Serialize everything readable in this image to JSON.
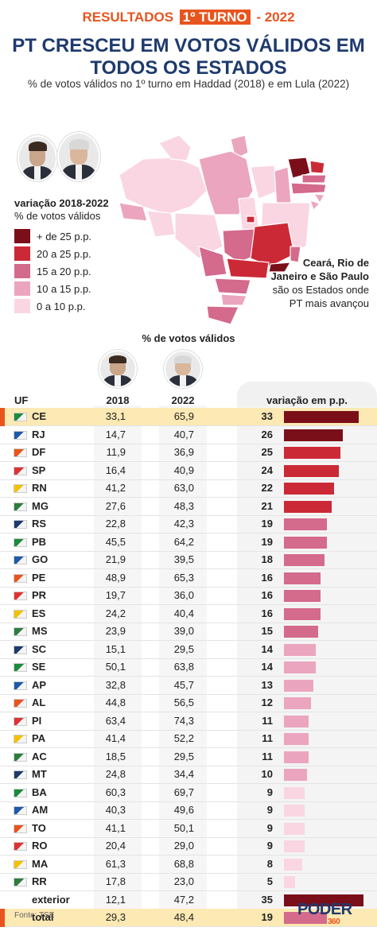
{
  "header": {
    "kicker_left": "RESULTADOS",
    "kicker_box": "1º TURNO",
    "kicker_right": "- 2022",
    "title_line1": "PT CRESCEU EM VOTOS VÁLIDOS EM",
    "title_line2": "TODOS OS ESTADOS",
    "subtitle": "% de votos válidos no 1º turno em Haddad (2018) e em Lula (2022)"
  },
  "legend": {
    "title": "variação 2018-2022",
    "subtitle": "% de votos válidos",
    "items": [
      {
        "label": "+ de 25 p.p.",
        "color": "#7a0f1a"
      },
      {
        "label": "20 a 25 p.p.",
        "color": "#cc2936"
      },
      {
        "label": "15 a 20 p.p.",
        "color": "#d46a8c"
      },
      {
        "label": "10 a 15 p.p.",
        "color": "#eba5bf"
      },
      {
        "label": "0 a 10 p.p.",
        "color": "#f9d6e2"
      }
    ]
  },
  "note": {
    "bold": "Ceará, Rio de Janeiro e São Paulo",
    "text": " são os Estados onde PT mais avançou"
  },
  "table": {
    "caption": "% de votos válidos",
    "col_uf": "UF",
    "col_2018": "2018",
    "col_2022": "2022",
    "col_var": "variação em p.p."
  },
  "footer": {
    "source": "Fonte: TSE",
    "logo": "PODER",
    "logo_num": "360"
  },
  "chart_data": {
    "type": "table",
    "columns": [
      "UF",
      "2018",
      "2022",
      "variação em p.p."
    ],
    "rows": [
      {
        "uf": "CE",
        "y2018": "33,1",
        "y2022": "65,9",
        "var": "33",
        "v": 33,
        "highlight": true
      },
      {
        "uf": "RJ",
        "y2018": "14,7",
        "y2022": "40,7",
        "var": "26",
        "v": 26
      },
      {
        "uf": "DF",
        "y2018": "11,9",
        "y2022": "36,9",
        "var": "25",
        "v": 25
      },
      {
        "uf": "SP",
        "y2018": "16,4",
        "y2022": "40,9",
        "var": "24",
        "v": 24
      },
      {
        "uf": "RN",
        "y2018": "41,2",
        "y2022": "63,0",
        "var": "22",
        "v": 22
      },
      {
        "uf": "MG",
        "y2018": "27,6",
        "y2022": "48,3",
        "var": "21",
        "v": 21
      },
      {
        "uf": "RS",
        "y2018": "22,8",
        "y2022": "42,3",
        "var": "19",
        "v": 19
      },
      {
        "uf": "PB",
        "y2018": "45,5",
        "y2022": "64,2",
        "var": "19",
        "v": 19
      },
      {
        "uf": "GO",
        "y2018": "21,9",
        "y2022": "39,5",
        "var": "18",
        "v": 18
      },
      {
        "uf": "PE",
        "y2018": "48,9",
        "y2022": "65,3",
        "var": "16",
        "v": 16
      },
      {
        "uf": "PR",
        "y2018": "19,7",
        "y2022": "36,0",
        "var": "16",
        "v": 16
      },
      {
        "uf": "ES",
        "y2018": "24,2",
        "y2022": "40,4",
        "var": "16",
        "v": 16
      },
      {
        "uf": "MS",
        "y2018": "23,9",
        "y2022": "39,0",
        "var": "15",
        "v": 15
      },
      {
        "uf": "SC",
        "y2018": "15,1",
        "y2022": "29,5",
        "var": "14",
        "v": 14
      },
      {
        "uf": "SE",
        "y2018": "50,1",
        "y2022": "63,8",
        "var": "14",
        "v": 14
      },
      {
        "uf": "AP",
        "y2018": "32,8",
        "y2022": "45,7",
        "var": "13",
        "v": 13
      },
      {
        "uf": "AL",
        "y2018": "44,8",
        "y2022": "56,5",
        "var": "12",
        "v": 12
      },
      {
        "uf": "PI",
        "y2018": "63,4",
        "y2022": "74,3",
        "var": "11",
        "v": 11
      },
      {
        "uf": "PA",
        "y2018": "41,4",
        "y2022": "52,2",
        "var": "11",
        "v": 11
      },
      {
        "uf": "AC",
        "y2018": "18,5",
        "y2022": "29,5",
        "var": "11",
        "v": 11
      },
      {
        "uf": "MT",
        "y2018": "24,8",
        "y2022": "34,4",
        "var": "10",
        "v": 10
      },
      {
        "uf": "BA",
        "y2018": "60,3",
        "y2022": "69,7",
        "var": "9",
        "v": 9
      },
      {
        "uf": "AM",
        "y2018": "40,3",
        "y2022": "49,6",
        "var": "9",
        "v": 9
      },
      {
        "uf": "TO",
        "y2018": "41,1",
        "y2022": "50,1",
        "var": "9",
        "v": 9
      },
      {
        "uf": "RO",
        "y2018": "20,4",
        "y2022": "29,0",
        "var": "9",
        "v": 9
      },
      {
        "uf": "MA",
        "y2018": "61,3",
        "y2022": "68,8",
        "var": "8",
        "v": 8
      },
      {
        "uf": "RR",
        "y2018": "17,8",
        "y2022": "23,0",
        "var": "5",
        "v": 5
      },
      {
        "uf": "exterior",
        "y2018": "12,1",
        "y2022": "47,2",
        "var": "35",
        "v": 35
      },
      {
        "uf": "total",
        "y2018": "29,3",
        "y2022": "48,4",
        "var": "19",
        "v": 19,
        "highlight": true
      }
    ]
  }
}
